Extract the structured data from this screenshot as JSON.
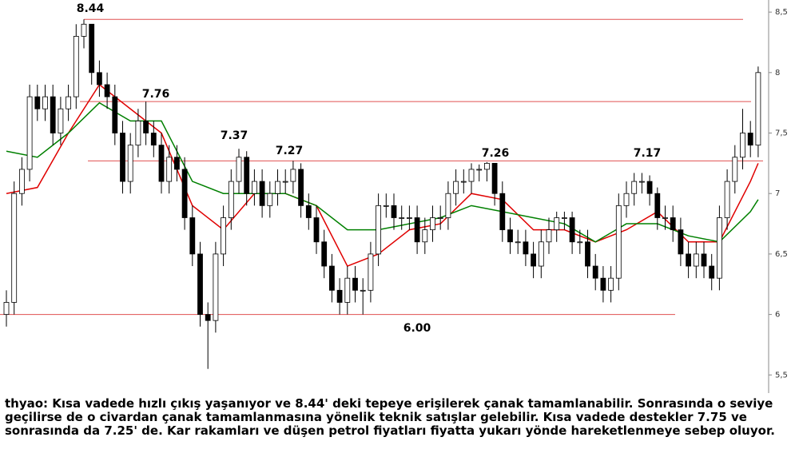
{
  "chart_data": {
    "type": "candlestick",
    "open": [
      6.0,
      6.1,
      7.0,
      7.2,
      7.8,
      7.7,
      7.8,
      7.5,
      7.7,
      7.8,
      8.3,
      8.4,
      8.0,
      7.9,
      7.8,
      7.5,
      7.1,
      7.4,
      7.6,
      7.5,
      7.4,
      7.1,
      7.3,
      7.2,
      6.8,
      6.5,
      6.0,
      5.95,
      6.5,
      6.8,
      7.1,
      7.3,
      7.0,
      7.1,
      6.9,
      7.0,
      7.1,
      7.1,
      7.2,
      6.9,
      6.8,
      6.6,
      6.4,
      6.2,
      6.1,
      6.3,
      6.2,
      6.2,
      6.5,
      6.9,
      6.9,
      6.8,
      6.8,
      6.8,
      6.6,
      6.7,
      6.8,
      6.8,
      7.0,
      7.1,
      7.1,
      7.2,
      7.2,
      7.25,
      7.0,
      6.7,
      6.6,
      6.6,
      6.5,
      6.4,
      6.6,
      6.7,
      6.8,
      6.8,
      6.6,
      6.6,
      6.4,
      6.3,
      6.2,
      6.3,
      6.9,
      7.0,
      7.1,
      7.1,
      7.0,
      6.8,
      6.8,
      6.7,
      6.5,
      6.4,
      6.5,
      6.4,
      6.3,
      6.8,
      7.1,
      7.3,
      7.5,
      7.4
    ],
    "high": [
      6.2,
      7.1,
      7.3,
      7.9,
      7.9,
      7.9,
      7.9,
      7.8,
      7.9,
      8.4,
      8.44,
      8.4,
      8.1,
      8.0,
      7.9,
      7.6,
      7.5,
      7.7,
      7.76,
      7.6,
      7.5,
      7.4,
      7.4,
      7.3,
      6.9,
      6.6,
      6.1,
      6.6,
      6.9,
      7.2,
      7.37,
      7.35,
      7.2,
      7.2,
      7.1,
      7.2,
      7.2,
      7.27,
      7.25,
      7.0,
      6.9,
      6.7,
      6.5,
      6.3,
      6.4,
      6.4,
      6.3,
      6.6,
      7.0,
      7.0,
      7.0,
      6.9,
      6.9,
      6.9,
      6.8,
      6.9,
      6.9,
      7.1,
      7.2,
      7.2,
      7.25,
      7.24,
      7.26,
      7.25,
      7.1,
      6.8,
      6.7,
      6.7,
      6.6,
      6.7,
      6.8,
      6.85,
      6.85,
      6.85,
      6.7,
      6.7,
      6.5,
      6.4,
      6.4,
      7.0,
      7.1,
      7.17,
      7.17,
      7.15,
      7.05,
      6.9,
      6.9,
      6.8,
      6.6,
      6.6,
      6.6,
      6.5,
      6.9,
      7.2,
      7.4,
      7.7,
      7.6,
      8.05
    ],
    "low": [
      5.9,
      6.0,
      6.9,
      7.1,
      7.6,
      7.6,
      7.4,
      7.4,
      7.6,
      7.7,
      8.2,
      7.9,
      7.8,
      7.7,
      7.4,
      7.0,
      7.0,
      7.3,
      7.4,
      7.3,
      7.0,
      7.0,
      7.1,
      6.7,
      6.4,
      5.9,
      5.55,
      5.85,
      6.4,
      6.7,
      7.0,
      6.9,
      6.9,
      6.8,
      6.8,
      6.9,
      7.0,
      7.0,
      6.8,
      6.7,
      6.5,
      6.3,
      6.1,
      6.0,
      6.0,
      6.1,
      6.0,
      6.1,
      6.4,
      6.8,
      6.7,
      6.7,
      6.7,
      6.5,
      6.5,
      6.6,
      6.7,
      6.7,
      6.9,
      7.0,
      7.0,
      7.1,
      7.1,
      6.9,
      6.6,
      6.5,
      6.5,
      6.4,
      6.3,
      6.3,
      6.5,
      6.6,
      6.7,
      6.5,
      6.5,
      6.3,
      6.2,
      6.1,
      6.1,
      6.2,
      6.8,
      6.9,
      7.0,
      6.9,
      6.7,
      6.7,
      6.6,
      6.4,
      6.3,
      6.3,
      6.3,
      6.2,
      6.2,
      6.7,
      7.0,
      7.2,
      7.3,
      7.3
    ],
    "close": [
      6.1,
      7.0,
      7.2,
      7.8,
      7.7,
      7.8,
      7.5,
      7.7,
      7.8,
      8.3,
      8.4,
      8.0,
      7.9,
      7.8,
      7.5,
      7.1,
      7.4,
      7.6,
      7.5,
      7.4,
      7.1,
      7.3,
      7.2,
      6.8,
      6.5,
      6.0,
      5.95,
      6.5,
      6.8,
      7.1,
      7.3,
      7.0,
      7.1,
      6.9,
      7.0,
      7.1,
      7.1,
      7.2,
      6.9,
      6.8,
      6.6,
      6.4,
      6.2,
      6.1,
      6.3,
      6.2,
      6.2,
      6.5,
      6.9,
      6.9,
      6.8,
      6.8,
      6.8,
      6.6,
      6.7,
      6.8,
      6.8,
      7.0,
      7.1,
      7.1,
      7.2,
      7.2,
      7.25,
      7.0,
      6.7,
      6.6,
      6.6,
      6.5,
      6.4,
      6.6,
      6.7,
      6.8,
      6.8,
      6.6,
      6.6,
      6.4,
      6.3,
      6.2,
      6.3,
      6.9,
      7.0,
      7.1,
      7.1,
      7.0,
      6.8,
      6.8,
      6.7,
      6.5,
      6.4,
      6.5,
      6.4,
      6.3,
      6.8,
      7.1,
      7.3,
      7.5,
      7.4,
      8.0
    ],
    "averages": [
      {
        "color": "#e00000",
        "x": [
          0,
          4,
          8,
          12,
          16,
          20,
          24,
          28,
          32,
          36,
          40,
          44,
          48,
          52,
          56,
          60,
          64,
          68,
          72,
          76,
          80,
          84,
          88,
          92,
          96,
          97
        ],
        "values": [
          7.0,
          7.05,
          7.5,
          7.9,
          7.7,
          7.5,
          6.9,
          6.7,
          7.0,
          7.0,
          6.9,
          6.4,
          6.5,
          6.7,
          6.75,
          7.0,
          6.95,
          6.7,
          6.7,
          6.6,
          6.7,
          6.85,
          6.6,
          6.6,
          7.1,
          7.25
        ]
      },
      {
        "color": "#008000",
        "x": [
          0,
          4,
          8,
          12,
          16,
          20,
          24,
          28,
          32,
          36,
          40,
          44,
          48,
          52,
          56,
          60,
          64,
          68,
          72,
          76,
          80,
          84,
          88,
          92,
          96,
          97
        ],
        "values": [
          7.35,
          7.3,
          7.5,
          7.75,
          7.6,
          7.6,
          7.1,
          7.0,
          7.0,
          7.0,
          6.9,
          6.7,
          6.7,
          6.75,
          6.8,
          6.9,
          6.85,
          6.8,
          6.75,
          6.6,
          6.75,
          6.75,
          6.65,
          6.6,
          6.85,
          6.95
        ]
      }
    ],
    "levels": [
      8.44,
      7.76,
      7.27,
      {
        "value": 6.0,
        "label": "6.00"
      }
    ],
    "level_color": "#e05050",
    "annotations": [
      "7.37",
      "7.27",
      "7.26",
      "7.17"
    ],
    "ylim": [
      5.35,
      8.6
    ],
    "yticks": [
      {
        "value": 8.5,
        "label": "8,5"
      },
      8,
      {
        "value": 7.5,
        "label": "7,5"
      },
      7,
      {
        "value": 6.5,
        "label": "6,5"
      },
      6,
      {
        "value": 5.5,
        "label": "5,5"
      }
    ],
    "caption": "thyao: Kısa vadede hızlı çıkış yaşanıyor ve 8.44' deki tepeye erişilerek çanak tamamlanabilir. Sonrasında o seviye geçilirse de o civardan çanak tamamlanmasına yönelik teknik satışlar gelebilir. Kısa vadede destekler 7.75 ve sonrasında da 7.25' de. Kar rakamları ve düşen petrol fiyatları fiyatta yukarı yönde hareketlenmeye sebep oluyor."
  }
}
